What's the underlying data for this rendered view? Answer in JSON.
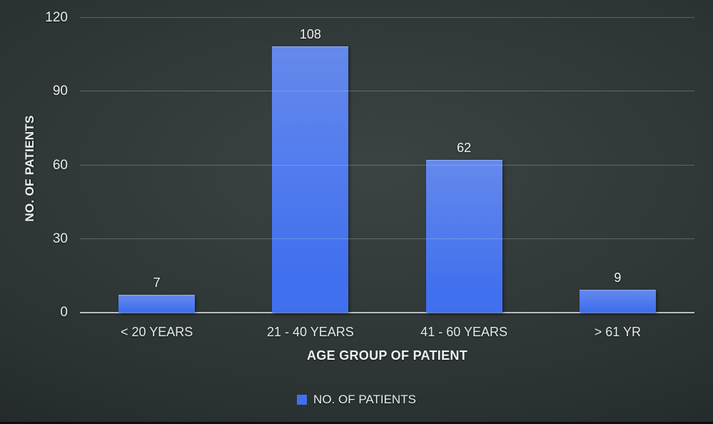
{
  "chart_data": {
    "type": "bar",
    "categories": [
      "< 20 YEARS",
      "21 - 40 YEARS",
      "41 - 60 YEARS",
      "> 61 YR"
    ],
    "values": [
      7,
      108,
      62,
      9
    ],
    "xlabel": "AGE GROUP OF PATIENT",
    "ylabel": "NO. OF PATIENTS",
    "yticks": [
      0,
      30,
      60,
      90,
      120
    ],
    "ylim": [
      0,
      120
    ],
    "grid": true,
    "legend_position": "bottom",
    "legend": [
      "NO. OF PATIENTS"
    ],
    "bar_color": "#4170ef",
    "bar_color_top": "#6589ec",
    "background_color": "#2e3535",
    "text_color": "#e9ecec"
  }
}
